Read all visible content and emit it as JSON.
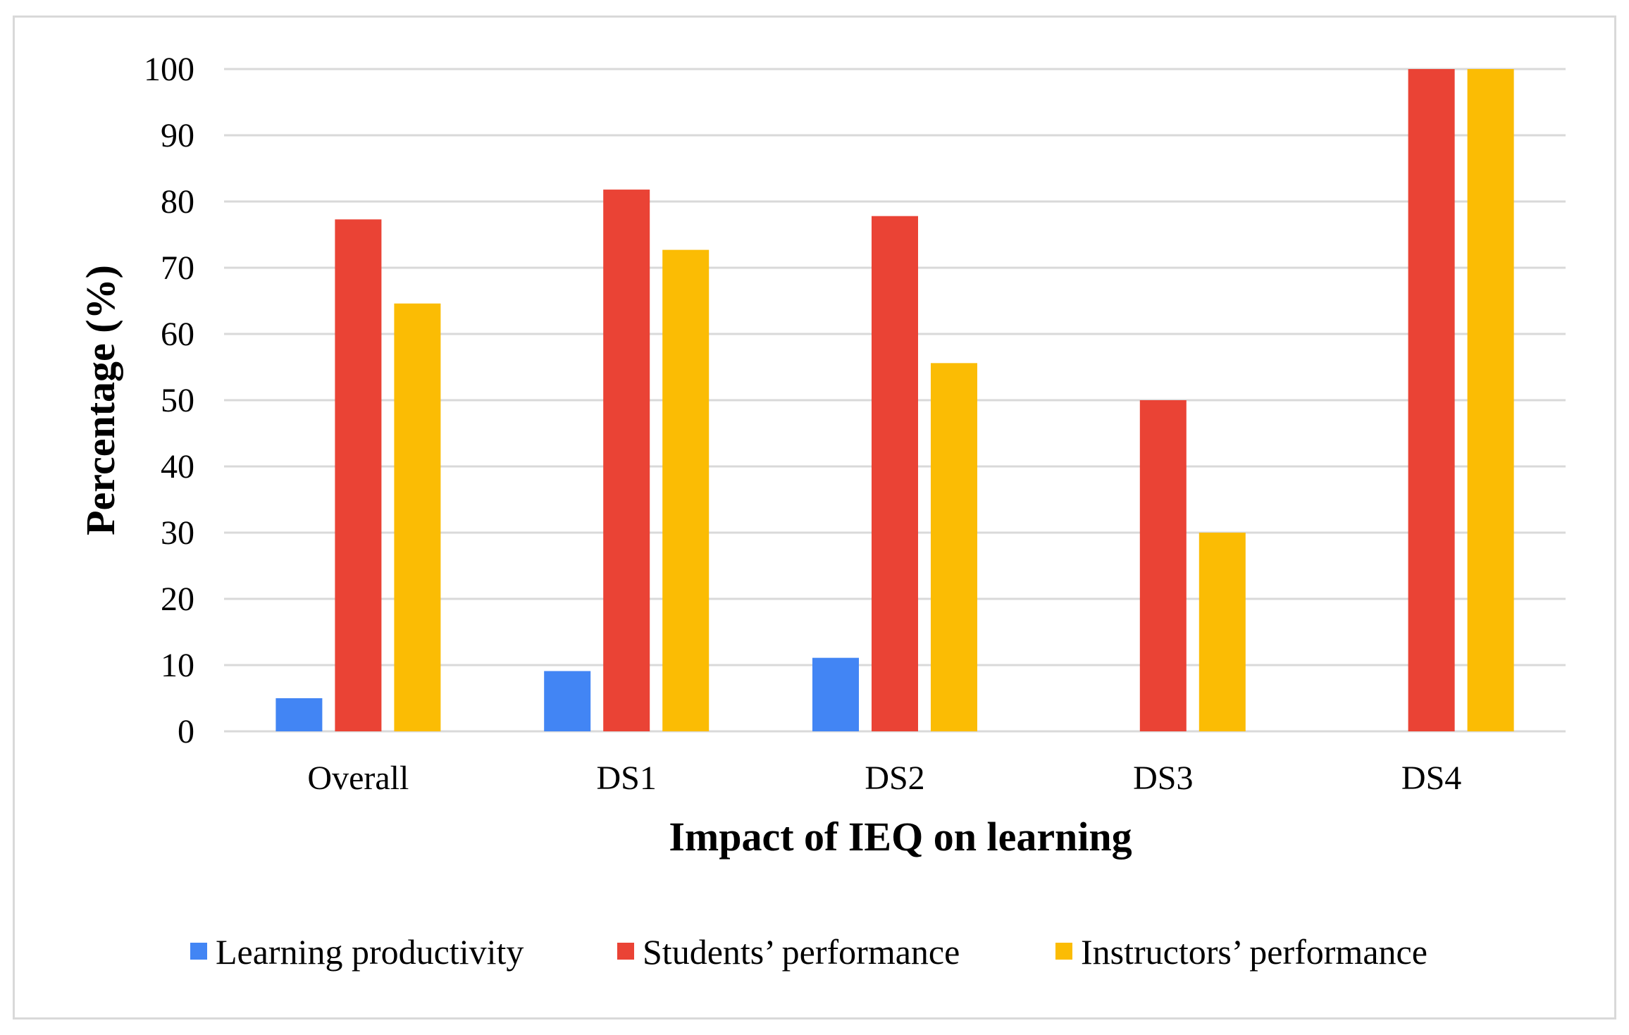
{
  "chart_data": {
    "type": "bar",
    "title": "",
    "xlabel": "Impact of IEQ on learning",
    "ylabel": "Percentage (%)",
    "ylim": [
      0,
      100
    ],
    "yticks": [
      0,
      10,
      20,
      30,
      40,
      50,
      60,
      70,
      80,
      90,
      100
    ],
    "grid": true,
    "legend_position": "bottom",
    "categories": [
      "Overall",
      "DS1",
      "DS2",
      "DS3",
      "DS4"
    ],
    "series": [
      {
        "name": "Learning productivity",
        "color": "#4285f4",
        "values": [
          5,
          9.1,
          11.1,
          0,
          0
        ]
      },
      {
        "name": "Students’ performance",
        "color": "#ea4335",
        "values": [
          77.3,
          81.8,
          77.8,
          50,
          100
        ]
      },
      {
        "name": "Instructors’ performance",
        "color": "#fbbc04",
        "values": [
          64.6,
          72.7,
          55.6,
          30,
          100
        ]
      }
    ]
  }
}
